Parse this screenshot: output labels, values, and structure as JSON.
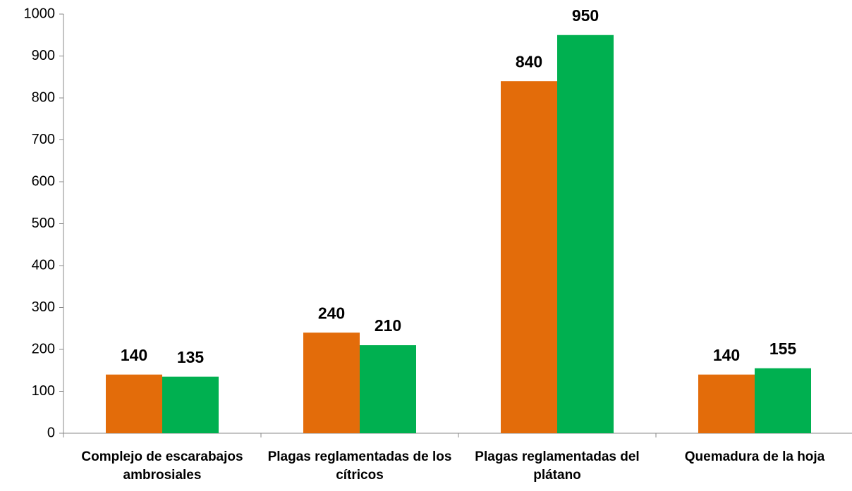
{
  "chart_data": {
    "type": "bar",
    "categories": [
      "Complejo de escarabajos ambrosiales",
      "Plagas reglamentadas de los cítricos",
      "Plagas reglamentadas del plátano",
      "Quemadura de la hoja"
    ],
    "series": [
      {
        "color": "#e36c0a",
        "values": [
          140,
          240,
          840,
          140
        ]
      },
      {
        "color": "#00b050",
        "values": [
          135,
          210,
          950,
          155
        ]
      }
    ],
    "ylim": [
      0,
      1000
    ],
    "yticks": [
      0,
      100,
      200,
      300,
      400,
      500,
      600,
      700,
      800,
      900,
      1000
    ]
  }
}
